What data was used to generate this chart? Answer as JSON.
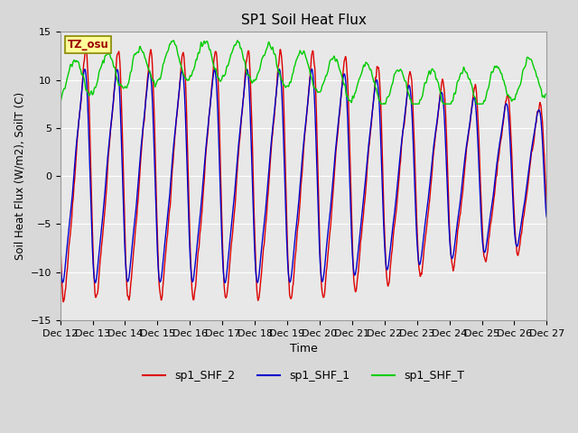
{
  "title": "SP1 Soil Heat Flux",
  "xlabel": "Time",
  "ylabel": "Soil Heat Flux (W/m2), SoilT (C)",
  "ylim": [
    -15,
    15
  ],
  "yticks": [
    -15,
    -10,
    -5,
    0,
    5,
    10,
    15
  ],
  "xtick_labels": [
    "Dec 12",
    "Dec 13",
    "Dec 14",
    "Dec 15",
    "Dec 16",
    "Dec 17",
    "Dec 18",
    "Dec 19",
    "Dec 20",
    "Dec 21",
    "Dec 22",
    "Dec 23",
    "Dec 24",
    "Dec 25",
    "Dec 26",
    "Dec 27"
  ],
  "legend_labels": [
    "sp1_SHF_2",
    "sp1_SHF_1",
    "sp1_SHF_T"
  ],
  "line_colors": [
    "#dd0000",
    "#0000cc",
    "#00cc00"
  ],
  "tz_label": "TZ_osu",
  "bg_color": "#d8d8d8",
  "plot_bg_color": "#e8e8e8",
  "n_points": 3000,
  "days": 15
}
